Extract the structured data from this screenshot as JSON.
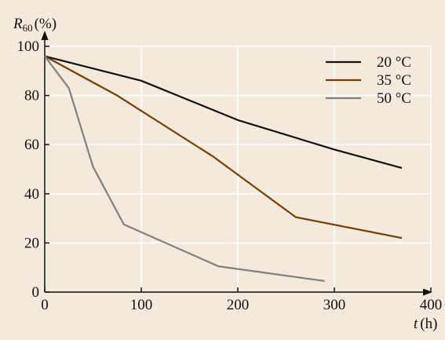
{
  "chart_data": {
    "type": "line",
    "title": "",
    "ylabel": {
      "main": "R",
      "subscript": "60",
      "unit": "(%)"
    },
    "xlabel": {
      "main": "t",
      "unit": "(h)"
    },
    "xlim": [
      0,
      400
    ],
    "ylim": [
      0,
      100
    ],
    "xticks": [
      0,
      100,
      200,
      300,
      400
    ],
    "yticks": [
      0,
      20,
      40,
      60,
      80,
      100
    ],
    "grid": true,
    "legend_position": "top-right",
    "series": [
      {
        "name": "20 °C",
        "color": "#111111",
        "points": [
          [
            0,
            96
          ],
          [
            100,
            86
          ],
          [
            200,
            70
          ],
          [
            300,
            58
          ],
          [
            370,
            50.5
          ]
        ]
      },
      {
        "name": "35 °C",
        "color": "#7a3d00",
        "points": [
          [
            0,
            96
          ],
          [
            75,
            80
          ],
          [
            175,
            55
          ],
          [
            260,
            30.5
          ],
          [
            370,
            22
          ]
        ]
      },
      {
        "name": "50 °C",
        "color": "#808080",
        "points": [
          [
            0,
            96
          ],
          [
            25,
            83
          ],
          [
            50,
            51
          ],
          [
            82,
            27.5
          ],
          [
            180,
            10.5
          ],
          [
            290,
            4.5
          ]
        ]
      }
    ]
  }
}
